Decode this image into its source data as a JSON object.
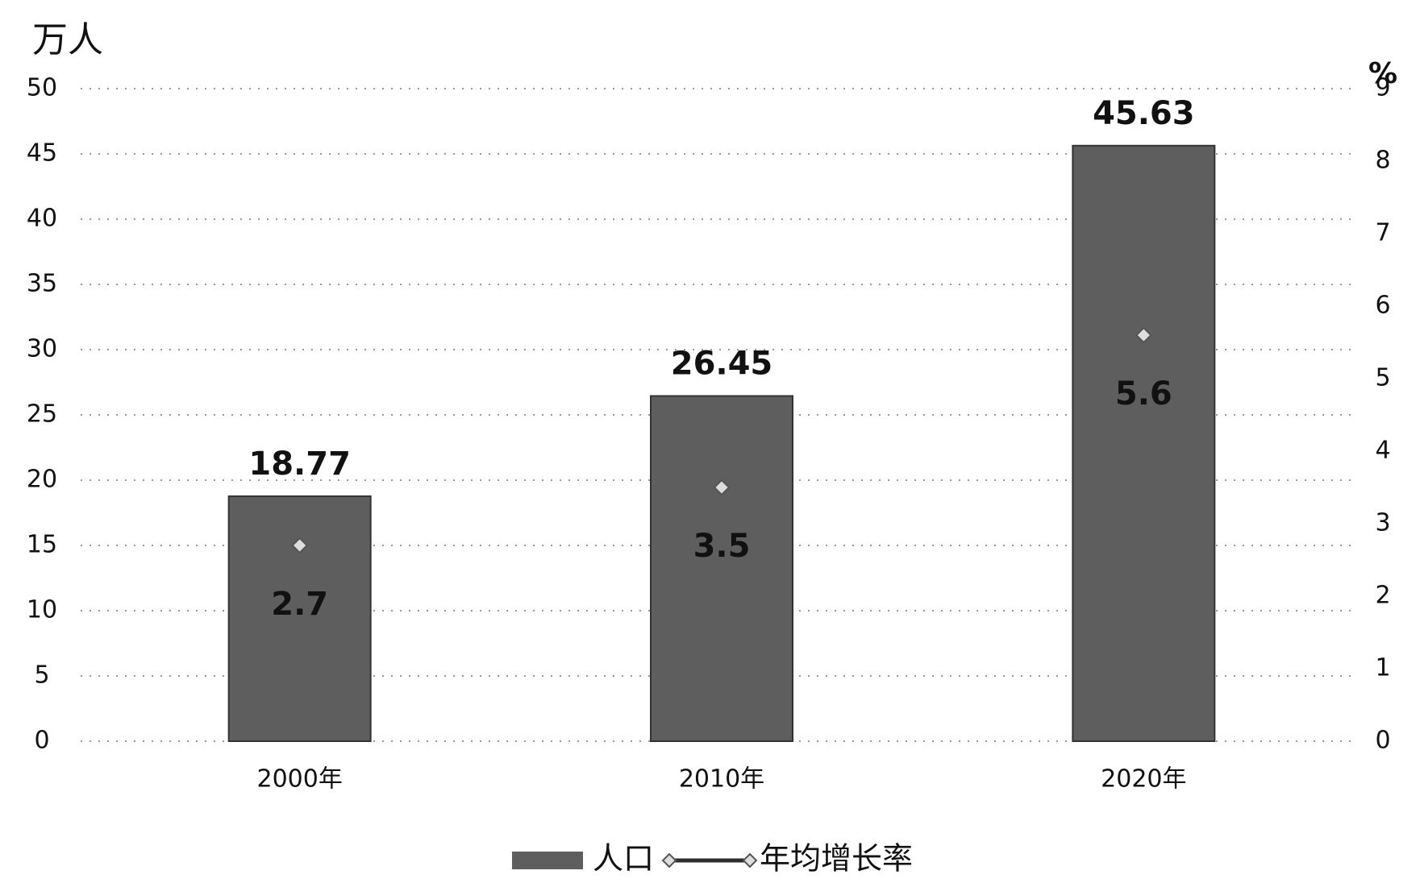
{
  "chart_data": {
    "type": "bar",
    "ylabel": "万人",
    "y2label": "%",
    "categories": [
      "2000年",
      "2010年",
      "2020年"
    ],
    "series": [
      {
        "name": "人口",
        "type": "bar",
        "color": "#5e5e5e",
        "values": [
          18.77,
          26.45,
          45.63
        ]
      },
      {
        "name": "年均增长率",
        "type": "line",
        "axis": "y2",
        "color": "#2e2e2e",
        "values": [
          2.7,
          3.5,
          5.6
        ]
      }
    ],
    "ylim": [
      0,
      50
    ],
    "yticks": [
      0,
      5,
      10,
      15,
      20,
      25,
      30,
      35,
      40,
      45,
      50
    ],
    "y2lim": [
      0,
      9
    ],
    "y2ticks": [
      0,
      1,
      2,
      3,
      4,
      5,
      6,
      7,
      8,
      9
    ],
    "grid": true,
    "legend": "bottom"
  }
}
